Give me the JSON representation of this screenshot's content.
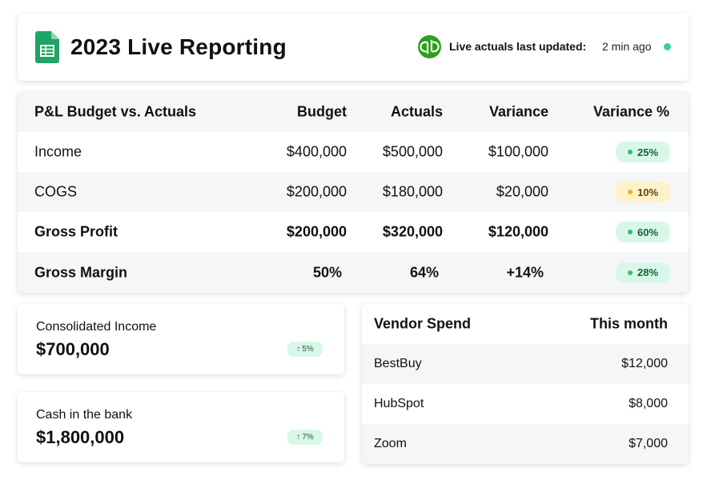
{
  "header": {
    "title": "2023 Live Reporting",
    "app_icon": "google-sheets-icon",
    "integration_icon": "quickbooks-icon",
    "updated_label": "Live actuals last updated:",
    "updated_value": "2 min ago",
    "live_color": "#3ccf8e"
  },
  "pl_table": {
    "headers": [
      "P&L Budget vs. Actuals",
      "Budget",
      "Actuals",
      "Variance",
      "Variance %"
    ],
    "rows": [
      {
        "label": "Income",
        "budget": "$400,000",
        "actuals": "$500,000",
        "variance": "$100,000",
        "variance_pct": "25%",
        "status": "green"
      },
      {
        "label": "COGS",
        "budget": "$200,000",
        "actuals": "$180,000",
        "variance": "$20,000",
        "variance_pct": "10%",
        "status": "yellow"
      },
      {
        "label": "Gross Profit",
        "budget": "$200,000",
        "actuals": "$320,000",
        "variance": "$120,000",
        "variance_pct": "60%",
        "status": "green"
      },
      {
        "label": "Gross Margin",
        "budget": "50%",
        "actuals": "64%",
        "variance": "+14%",
        "variance_pct": "28%",
        "status": "green"
      }
    ]
  },
  "stats": [
    {
      "label": "Consolidated Income",
      "value": "$700,000",
      "change": "5%"
    },
    {
      "label": "Cash in the bank",
      "value": "$1,800,000",
      "change": "7%"
    }
  ],
  "vendor_table": {
    "headers": [
      "Vendor Spend",
      "This month"
    ],
    "rows": [
      {
        "vendor": "BestBuy",
        "amount": "$12,000"
      },
      {
        "vendor": "HubSpot",
        "amount": "$8,000"
      },
      {
        "vendor": "Zoom",
        "amount": "$7,000"
      }
    ]
  },
  "colors": {
    "green_pill_bg": "#d9f7e8",
    "green_dot": "#2fc07b",
    "yellow_pill_bg": "#fff1c9",
    "yellow_dot": "#f2b019",
    "row_shade": "#f5f6f8",
    "quickbooks_green": "#2ca01c",
    "sheets_green": "#1fa463"
  }
}
